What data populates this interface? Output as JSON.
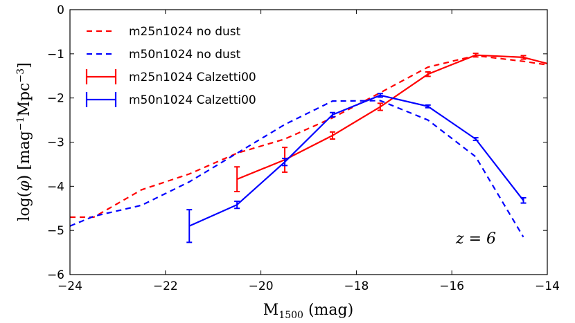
{
  "chart_data": {
    "type": "line",
    "title": "",
    "xlabel": "M1500 (mag)",
    "ylabel": "log(φ) [mag⁻¹Mpc⁻³]",
    "xlim": [
      -24,
      -14
    ],
    "ylim": [
      -6,
      0
    ],
    "xticks": [
      -24,
      -22,
      -20,
      -18,
      -16,
      -14
    ],
    "xtick_labels": [
      "−24",
      "−22",
      "−20",
      "−18",
      "−16",
      "−14"
    ],
    "yticks": [
      -6,
      -5,
      -4,
      -3,
      -2,
      -1,
      0
    ],
    "ytick_labels": [
      "−6",
      "−5",
      "−4",
      "−3",
      "−2",
      "−1",
      "0"
    ],
    "grid": false,
    "legend_position": "top-left",
    "annotation": "z = 6",
    "series": [
      {
        "name": "m25n1024 no dust",
        "color": "#ff0000",
        "style": "dashed",
        "x": [
          -24.0,
          -23.5,
          -22.5,
          -21.5,
          -20.5,
          -19.5,
          -18.5,
          -17.5,
          -16.5,
          -15.5,
          -14.5,
          -14.0
        ],
        "y": [
          -4.7,
          -4.7,
          -4.08,
          -3.72,
          -3.25,
          -2.93,
          -2.45,
          -1.88,
          -1.3,
          -1.04,
          -1.17,
          -1.25
        ]
      },
      {
        "name": "m50n1024 no dust",
        "color": "#0000ff",
        "style": "dashed",
        "x": [
          -24.0,
          -23.5,
          -22.5,
          -21.5,
          -20.5,
          -19.5,
          -18.5,
          -17.5,
          -16.5,
          -15.5,
          -14.5
        ],
        "y": [
          -4.9,
          -4.68,
          -4.43,
          -3.9,
          -3.25,
          -2.6,
          -2.07,
          -2.06,
          -2.5,
          -3.33,
          -5.15
        ]
      },
      {
        "name": "m25n1024 Calzetti00",
        "color": "#ff0000",
        "style": "solid",
        "x": [
          -20.5,
          -19.5,
          -18.5,
          -17.5,
          -16.5,
          -15.5,
          -14.5,
          -14.0
        ],
        "y": [
          -3.84,
          -3.4,
          -2.85,
          -2.2,
          -1.46,
          -1.03,
          -1.08,
          -1.22
        ],
        "err": [
          0.28,
          0.28,
          0.08,
          0.08,
          0.05,
          0.04,
          0.04,
          0
        ]
      },
      {
        "name": "m50n1024 Calzetti00",
        "color": "#0000ff",
        "style": "solid",
        "x": [
          -21.5,
          -20.5,
          -19.5,
          -18.5,
          -17.5,
          -16.5,
          -15.5,
          -14.5
        ],
        "y": [
          -4.9,
          -4.42,
          -3.45,
          -2.38,
          -1.94,
          -2.19,
          -2.93,
          -4.32
        ],
        "err": [
          0.37,
          0.08,
          0.08,
          0.05,
          0.04,
          0.03,
          0.03,
          0.06
        ]
      }
    ]
  }
}
